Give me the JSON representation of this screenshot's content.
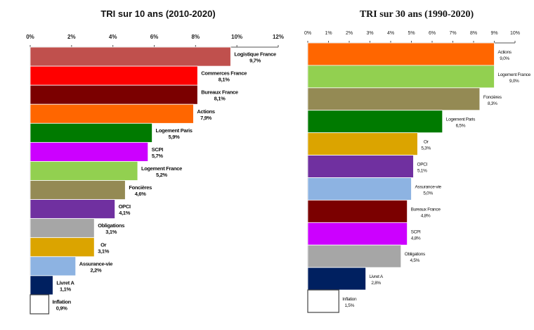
{
  "chart_data": [
    {
      "type": "bar",
      "orientation": "horizontal",
      "title": "TRI sur 10 ans (2010-2020)",
      "xlim": [
        0,
        12
      ],
      "x_ticks": [
        "0%",
        "2%",
        "4%",
        "6%",
        "8%",
        "10%",
        "12%"
      ],
      "grid": false,
      "categories": [
        "Logistique France",
        "Commerces France",
        "Bureaux France",
        "Actions",
        "Logement Paris",
        "SCPI",
        "Logement France",
        "Foncières",
        "OPCI",
        "Obligations",
        "Or",
        "Assurance-vie",
        "Livret A",
        "Inflation"
      ],
      "values": [
        9.7,
        8.1,
        8.1,
        7.9,
        5.9,
        5.7,
        5.2,
        4.6,
        4.1,
        3.1,
        3.1,
        2.2,
        1.1,
        0.9
      ],
      "value_labels": [
        "9,7%",
        "8,1%",
        "8,1%",
        "7,9%",
        "5,9%",
        "5,7%",
        "5,2%",
        "4,6%",
        "4,1%",
        "3,1%",
        "3,1%",
        "2,2%",
        "1,1%",
        "0,9%"
      ],
      "colors": [
        "#c0504d",
        "#ff0000",
        "#7b0000",
        "#ff6600",
        "#007a00",
        "#cc00ff",
        "#92d050",
        "#948a54",
        "#7030a0",
        "#a6a6a6",
        "#dba400",
        "#8db3e2",
        "#002060",
        "#ffffff"
      ]
    },
    {
      "type": "bar",
      "orientation": "horizontal",
      "title": "TRI sur 30 ans (1990-2020)",
      "xlim": [
        0,
        10
      ],
      "x_ticks": [
        "0%",
        "1%",
        "2%",
        "3%",
        "4%",
        "5%",
        "6%",
        "7%",
        "8%",
        "9%",
        "10%"
      ],
      "grid": false,
      "categories": [
        "Actions",
        "Logement France",
        "Foncières",
        "Logement Paris",
        "Or",
        "OPCI",
        "Assurance-vie",
        "Bureaux France",
        "SCPI",
        "Obligations",
        "Livret A",
        "Inflation"
      ],
      "values": [
        9.0,
        9.0,
        8.3,
        6.5,
        5.3,
        5.1,
        5.0,
        4.8,
        4.8,
        4.5,
        2.8,
        1.5
      ],
      "value_labels": [
        "9,0%",
        "9,0%",
        "8,3%",
        "6,5%",
        "5,3%",
        "5,1%",
        "5,0%",
        "4,8%",
        "4,8%",
        "4,5%",
        "2,8%",
        "1,5%"
      ],
      "colors": [
        "#ff6600",
        "#92d050",
        "#948a54",
        "#007a00",
        "#dba400",
        "#7030a0",
        "#8db3e2",
        "#7b0000",
        "#cc00ff",
        "#a6a6a6",
        "#002060",
        "#ffffff"
      ]
    }
  ]
}
